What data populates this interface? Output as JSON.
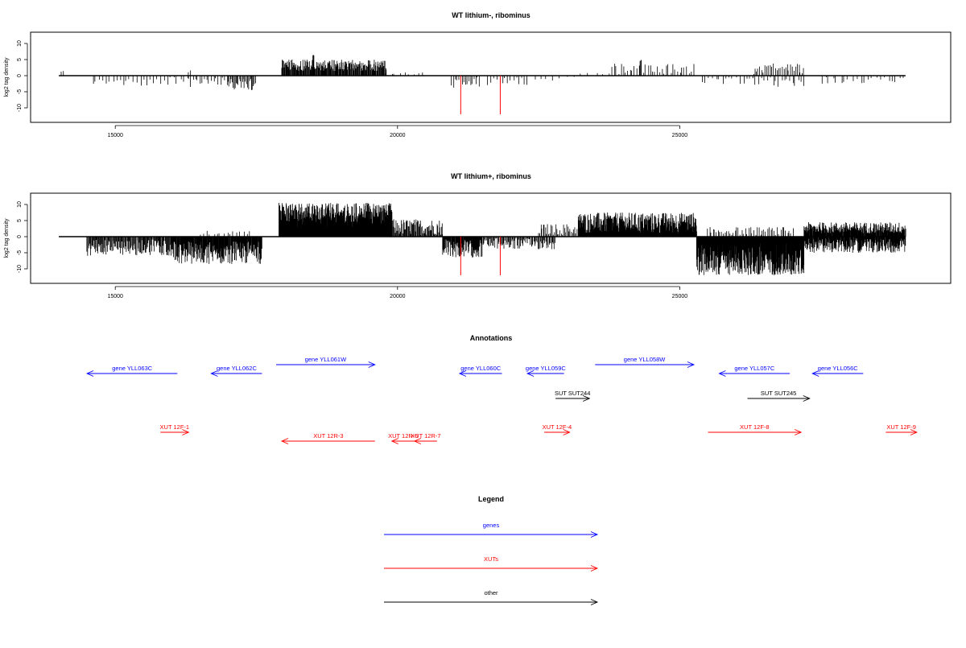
{
  "chart_data": [
    {
      "type": "bar",
      "title": "WT lithium-, ribominus",
      "ylabel": "log2 tag density",
      "xlim": [
        13500,
        29800
      ],
      "ylim": [
        -13,
        12
      ],
      "xticks": [
        15000,
        20000,
        25000
      ],
      "yticks": [
        10,
        5,
        0,
        -5,
        -10
      ],
      "baseline_range": [
        14000,
        29000
      ],
      "series_color": "#000000",
      "marker_color": "#ff0000",
      "markers": [
        {
          "x": 21120,
          "y": -12
        },
        {
          "x": 21820,
          "y": -12
        }
      ],
      "regions": [
        {
          "start": 14030,
          "end": 14080,
          "sign": 1,
          "min": 1,
          "max": 2,
          "step": 40
        },
        {
          "start": 14600,
          "end": 16300,
          "sign": -1,
          "min": 0.5,
          "max": 3.2,
          "step": 60
        },
        {
          "start": 16300,
          "end": 17000,
          "sign": -1,
          "min": 0.5,
          "max": 3.5,
          "step": 40
        },
        {
          "start": 16300,
          "end": 16350,
          "sign": 1,
          "min": 1,
          "max": 1.8,
          "step": 40
        },
        {
          "start": 17000,
          "end": 17500,
          "sign": -1,
          "min": 1,
          "max": 4.5,
          "step": 18
        },
        {
          "start": 17950,
          "end": 19800,
          "sign": 1,
          "min": 1.5,
          "max": 5,
          "step": 10
        },
        {
          "start": 18500,
          "end": 18520,
          "sign": 1,
          "min": 6,
          "max": 6.5,
          "step": 10
        },
        {
          "start": 19800,
          "end": 20500,
          "sign": 1,
          "min": 0.3,
          "max": 1.3,
          "step": 80
        },
        {
          "start": 20960,
          "end": 21450,
          "sign": -1,
          "min": 0.5,
          "max": 4,
          "step": 30
        },
        {
          "start": 21600,
          "end": 22300,
          "sign": -1,
          "min": 0.5,
          "max": 3,
          "step": 50
        },
        {
          "start": 22400,
          "end": 23200,
          "sign": -1,
          "min": 0.3,
          "max": 2,
          "step": 120
        },
        {
          "start": 23200,
          "end": 23800,
          "sign": 1,
          "min": 0.3,
          "max": 1,
          "step": 150
        },
        {
          "start": 23800,
          "end": 25250,
          "sign": 1,
          "min": 0.5,
          "max": 3.8,
          "step": 40
        },
        {
          "start": 24300,
          "end": 24320,
          "sign": 1,
          "min": 4.5,
          "max": 5,
          "step": 10
        },
        {
          "start": 25400,
          "end": 26300,
          "sign": -1,
          "min": 0.5,
          "max": 2.8,
          "step": 60
        },
        {
          "start": 26300,
          "end": 27200,
          "sign": 1,
          "min": 0.5,
          "max": 3.8,
          "step": 30
        },
        {
          "start": 26300,
          "end": 27200,
          "sign": -1,
          "min": 0.5,
          "max": 3.5,
          "step": 50
        },
        {
          "start": 27500,
          "end": 29000,
          "sign": -1,
          "min": 0.5,
          "max": 2.5,
          "step": 70
        }
      ]
    },
    {
      "type": "bar",
      "title": "WT lithium+, ribominus",
      "ylabel": "log2 tag density",
      "xlim": [
        13500,
        29800
      ],
      "ylim": [
        -13,
        12
      ],
      "xticks": [
        15000,
        20000,
        25000
      ],
      "yticks": [
        10,
        5,
        0,
        -5,
        -10
      ],
      "baseline_range": [
        14000,
        29000
      ],
      "series_color": "#000000",
      "marker_color": "#ff0000",
      "markers": [
        {
          "x": 21120,
          "y": -12
        },
        {
          "x": 21820,
          "y": -12
        }
      ],
      "regions": [
        {
          "start": 14500,
          "end": 16000,
          "sign": -1,
          "min": 0.8,
          "max": 6,
          "step": 12
        },
        {
          "start": 16000,
          "end": 17600,
          "sign": -1,
          "min": 1.5,
          "max": 8.5,
          "step": 8
        },
        {
          "start": 16500,
          "end": 17400,
          "sign": 1,
          "min": 0.5,
          "max": 1.8,
          "step": 60
        },
        {
          "start": 17900,
          "end": 19900,
          "sign": 1,
          "min": 3,
          "max": 10.5,
          "step": 5
        },
        {
          "start": 19900,
          "end": 20800,
          "sign": 1,
          "min": 0.5,
          "max": 5.5,
          "step": 12
        },
        {
          "start": 20800,
          "end": 21500,
          "sign": -1,
          "min": 0.8,
          "max": 6.5,
          "step": 8
        },
        {
          "start": 21500,
          "end": 22800,
          "sign": -1,
          "min": 0.5,
          "max": 4,
          "step": 15
        },
        {
          "start": 22500,
          "end": 23200,
          "sign": 1,
          "min": 0.5,
          "max": 4,
          "step": 20
        },
        {
          "start": 23200,
          "end": 25300,
          "sign": 1,
          "min": 1,
          "max": 7.5,
          "step": 6
        },
        {
          "start": 25300,
          "end": 27200,
          "sign": -1,
          "min": 2,
          "max": 12,
          "step": 5
        },
        {
          "start": 25500,
          "end": 27000,
          "sign": 1,
          "min": 0.5,
          "max": 3,
          "step": 30
        },
        {
          "start": 27200,
          "end": 29000,
          "sign": 1,
          "min": 1,
          "max": 4.5,
          "step": 8
        },
        {
          "start": 27200,
          "end": 29000,
          "sign": -1,
          "min": 0.5,
          "max": 5,
          "step": 8
        }
      ]
    }
  ],
  "annotations": {
    "title": "Annotations",
    "xlim": [
      13500,
      29800
    ],
    "rows": [
      {
        "name": "gene YLL063C",
        "start": 14500,
        "end": 16100,
        "dir": -1,
        "type": "gene",
        "row": 1
      },
      {
        "name": "gene YLL062C",
        "start": 16700,
        "end": 17600,
        "dir": -1,
        "type": "gene",
        "row": 1
      },
      {
        "name": "gene YLL061W",
        "start": 17850,
        "end": 19600,
        "dir": 1,
        "type": "gene",
        "row": 0
      },
      {
        "name": "gene YLL060C",
        "start": 21100,
        "end": 21850,
        "dir": -1,
        "type": "gene",
        "row": 1
      },
      {
        "name": "gene YLL059C",
        "start": 22300,
        "end": 22950,
        "dir": -1,
        "type": "gene",
        "row": 1
      },
      {
        "name": "gene YLL058W",
        "start": 23500,
        "end": 25250,
        "dir": 1,
        "type": "gene",
        "row": 0
      },
      {
        "name": "gene YLL057C",
        "start": 25700,
        "end": 26950,
        "dir": -1,
        "type": "gene",
        "row": 1
      },
      {
        "name": "gene YLL056C",
        "start": 27350,
        "end": 28250,
        "dir": -1,
        "type": "gene",
        "row": 1
      },
      {
        "name": "SUT SUT244",
        "start": 22800,
        "end": 23400,
        "dir": 1,
        "type": "other",
        "row": 2
      },
      {
        "name": "SUT SUT245",
        "start": 26200,
        "end": 27300,
        "dir": 1,
        "type": "other",
        "row": 2
      },
      {
        "name": "XUT 12F-1",
        "start": 15800,
        "end": 16300,
        "dir": 1,
        "type": "xut",
        "row": 3
      },
      {
        "name": "XUT 12R-3",
        "start": 17950,
        "end": 19600,
        "dir": -1,
        "type": "xut",
        "row": 4
      },
      {
        "name": "XUT 12R-6",
        "start": 19900,
        "end": 20300,
        "dir": -1,
        "type": "xut",
        "row": 4
      },
      {
        "name": "XUT 12R-7",
        "start": 20300,
        "end": 20700,
        "dir": -1,
        "type": "xut",
        "row": 4
      },
      {
        "name": "XUT 12F-4",
        "start": 22600,
        "end": 23050,
        "dir": 1,
        "type": "xut",
        "row": 3
      },
      {
        "name": "XUT 12F-8",
        "start": 25500,
        "end": 27150,
        "dir": 1,
        "type": "xut",
        "row": 3
      },
      {
        "name": "XUT 12F-9",
        "start": 28650,
        "end": 29200,
        "dir": 1,
        "type": "xut",
        "row": 3
      }
    ]
  },
  "legend": {
    "title": "Legend",
    "items": [
      {
        "label": "genes",
        "color": "#0000ff"
      },
      {
        "label": "XUTs",
        "color": "#ff0000"
      },
      {
        "label": "other",
        "color": "#000000"
      }
    ]
  },
  "colors": {
    "gene": "#0000ff",
    "xut": "#ff0000",
    "other": "#000000"
  }
}
